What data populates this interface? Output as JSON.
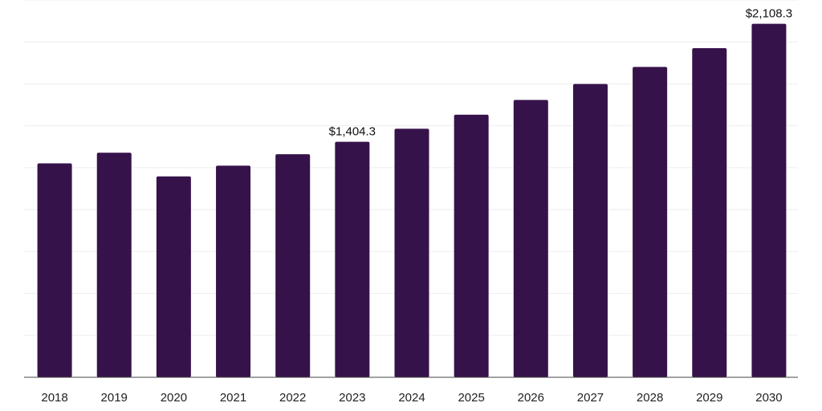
{
  "chart_data": {
    "type": "bar",
    "title": "",
    "xlabel": "",
    "ylabel": "",
    "categories": [
      "2018",
      "2019",
      "2020",
      "2021",
      "2022",
      "2023",
      "2024",
      "2025",
      "2026",
      "2027",
      "2028",
      "2029",
      "2030"
    ],
    "values": [
      1276,
      1339,
      1198,
      1262,
      1330,
      1404.3,
      1482,
      1566,
      1654,
      1749,
      1851,
      1963,
      2108.3
    ],
    "data_labels": [
      {
        "index": 5,
        "text": "$1,404.3"
      },
      {
        "index": 12,
        "text": "$2,108.3"
      }
    ],
    "ylim": [
      0,
      2250
    ],
    "gridlines": 9,
    "grid": true,
    "legend": "none",
    "bar_color": "#36124a"
  }
}
